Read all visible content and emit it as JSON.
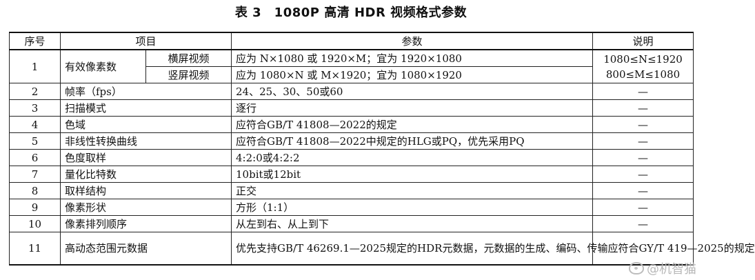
{
  "title": "表 3　1080P 高清 HDR 视频格式参数",
  "headers": {
    "no": "序号",
    "item": "项目",
    "param": "参数",
    "note": "说明"
  },
  "row1": {
    "no": "1",
    "item": "有效像素数",
    "sub1": "横屏视频",
    "param1": "应为 N×1080 或 1920×M；宜为 1920×1080",
    "sub2": "竖屏视频",
    "param2": "应为 1080×N 或 M×1920；宜为 1080×1920",
    "note1": "1080≤N≤1920",
    "note2": "800≤M≤1080"
  },
  "rows": [
    {
      "no": "2",
      "item": "帧率（fps）",
      "param": "24、25、30、50或60",
      "note": "—"
    },
    {
      "no": "3",
      "item": "扫描模式",
      "param": "逐行",
      "note": "—"
    },
    {
      "no": "4",
      "item": "色域",
      "param": "应符合GB/T 41808—2022的规定",
      "note": "—"
    },
    {
      "no": "5",
      "item": "非线性转换曲线",
      "param": "应符合GB/T 41808—2022中规定的HLG或PQ，优先采用PQ",
      "note": "—"
    },
    {
      "no": "6",
      "item": "色度取样",
      "param": "4:2:0或4:2:2",
      "note": "—"
    },
    {
      "no": "7",
      "item": "量化比特数",
      "param": "10bit或12bit",
      "note": "—"
    },
    {
      "no": "8",
      "item": "取样结构",
      "param": "正交",
      "note": "—"
    },
    {
      "no": "9",
      "item": "像素形状",
      "param": "方形（1:1）",
      "note": "—"
    },
    {
      "no": "10",
      "item": "像素排列顺序",
      "param": "从左到右、从上到下",
      "note": "—"
    }
  ],
  "row11": {
    "no": "11",
    "item": "高动态范围元数据",
    "param": "优先支持GB/T 46269.1—2025规定的HDR元数据，元数据的生成、编码、传输应符合GY/T 419—2025的规定",
    "note": ""
  },
  "watermark": {
    "icon": "weibo-icon",
    "text": "@机智猫"
  }
}
